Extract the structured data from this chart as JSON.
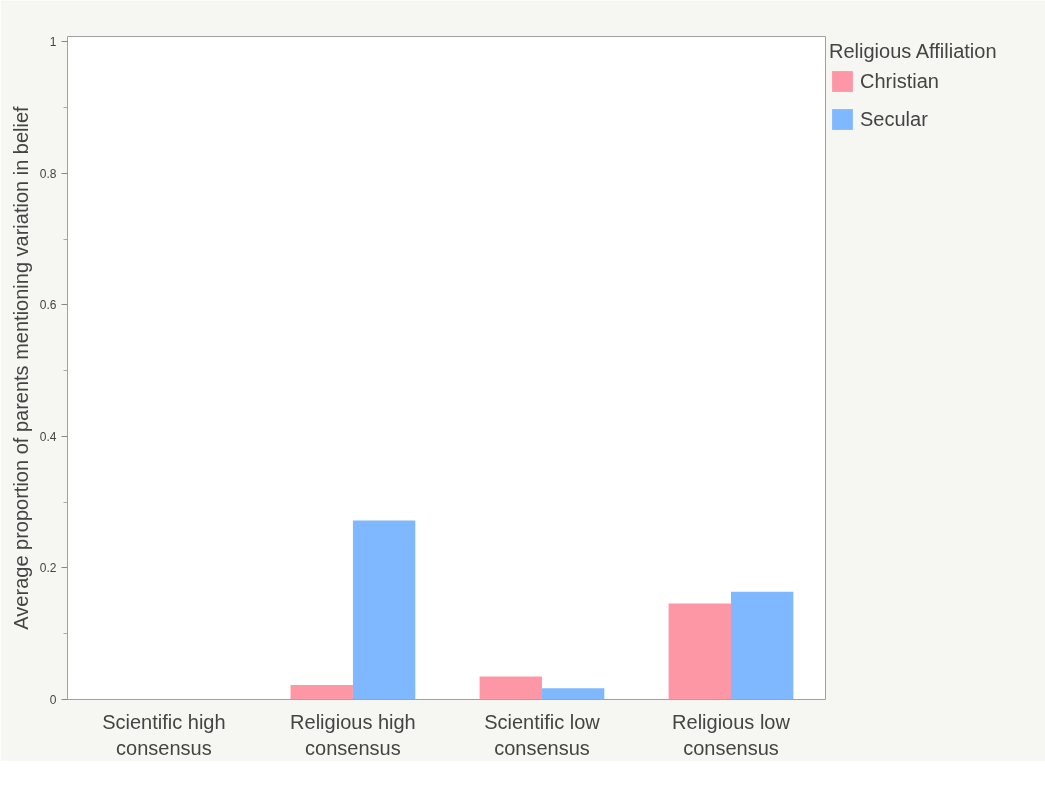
{
  "chart_data": {
    "type": "bar",
    "ylabel": "Average proportion of parents mentioning variation in belief",
    "legend_title": "Religious Affiliation",
    "categories": [
      "Scientific high consensus",
      "Religious high consensus",
      "Scientific low consensus",
      "Religious low consensus"
    ],
    "series": [
      {
        "name": "Christian",
        "color": "#fd97a6",
        "values": [
          0,
          0.022,
          0.035,
          0.146
        ]
      },
      {
        "name": "Secular",
        "color": "#7fb8fe",
        "values": [
          0,
          0.272,
          0.017,
          0.164
        ]
      }
    ],
    "ylim": [
      0,
      1.008
    ],
    "yticks": [
      0,
      {
        "value": 0.1,
        "label": null
      },
      0.2,
      {
        "value": 0.3,
        "label": null
      },
      0.4,
      {
        "value": 0.5,
        "label": null
      },
      0.6,
      {
        "value": 0.7,
        "label": null
      },
      0.8,
      {
        "value": 0.9,
        "label": null
      },
      1
    ],
    "grid": false,
    "legend": "top right"
  }
}
